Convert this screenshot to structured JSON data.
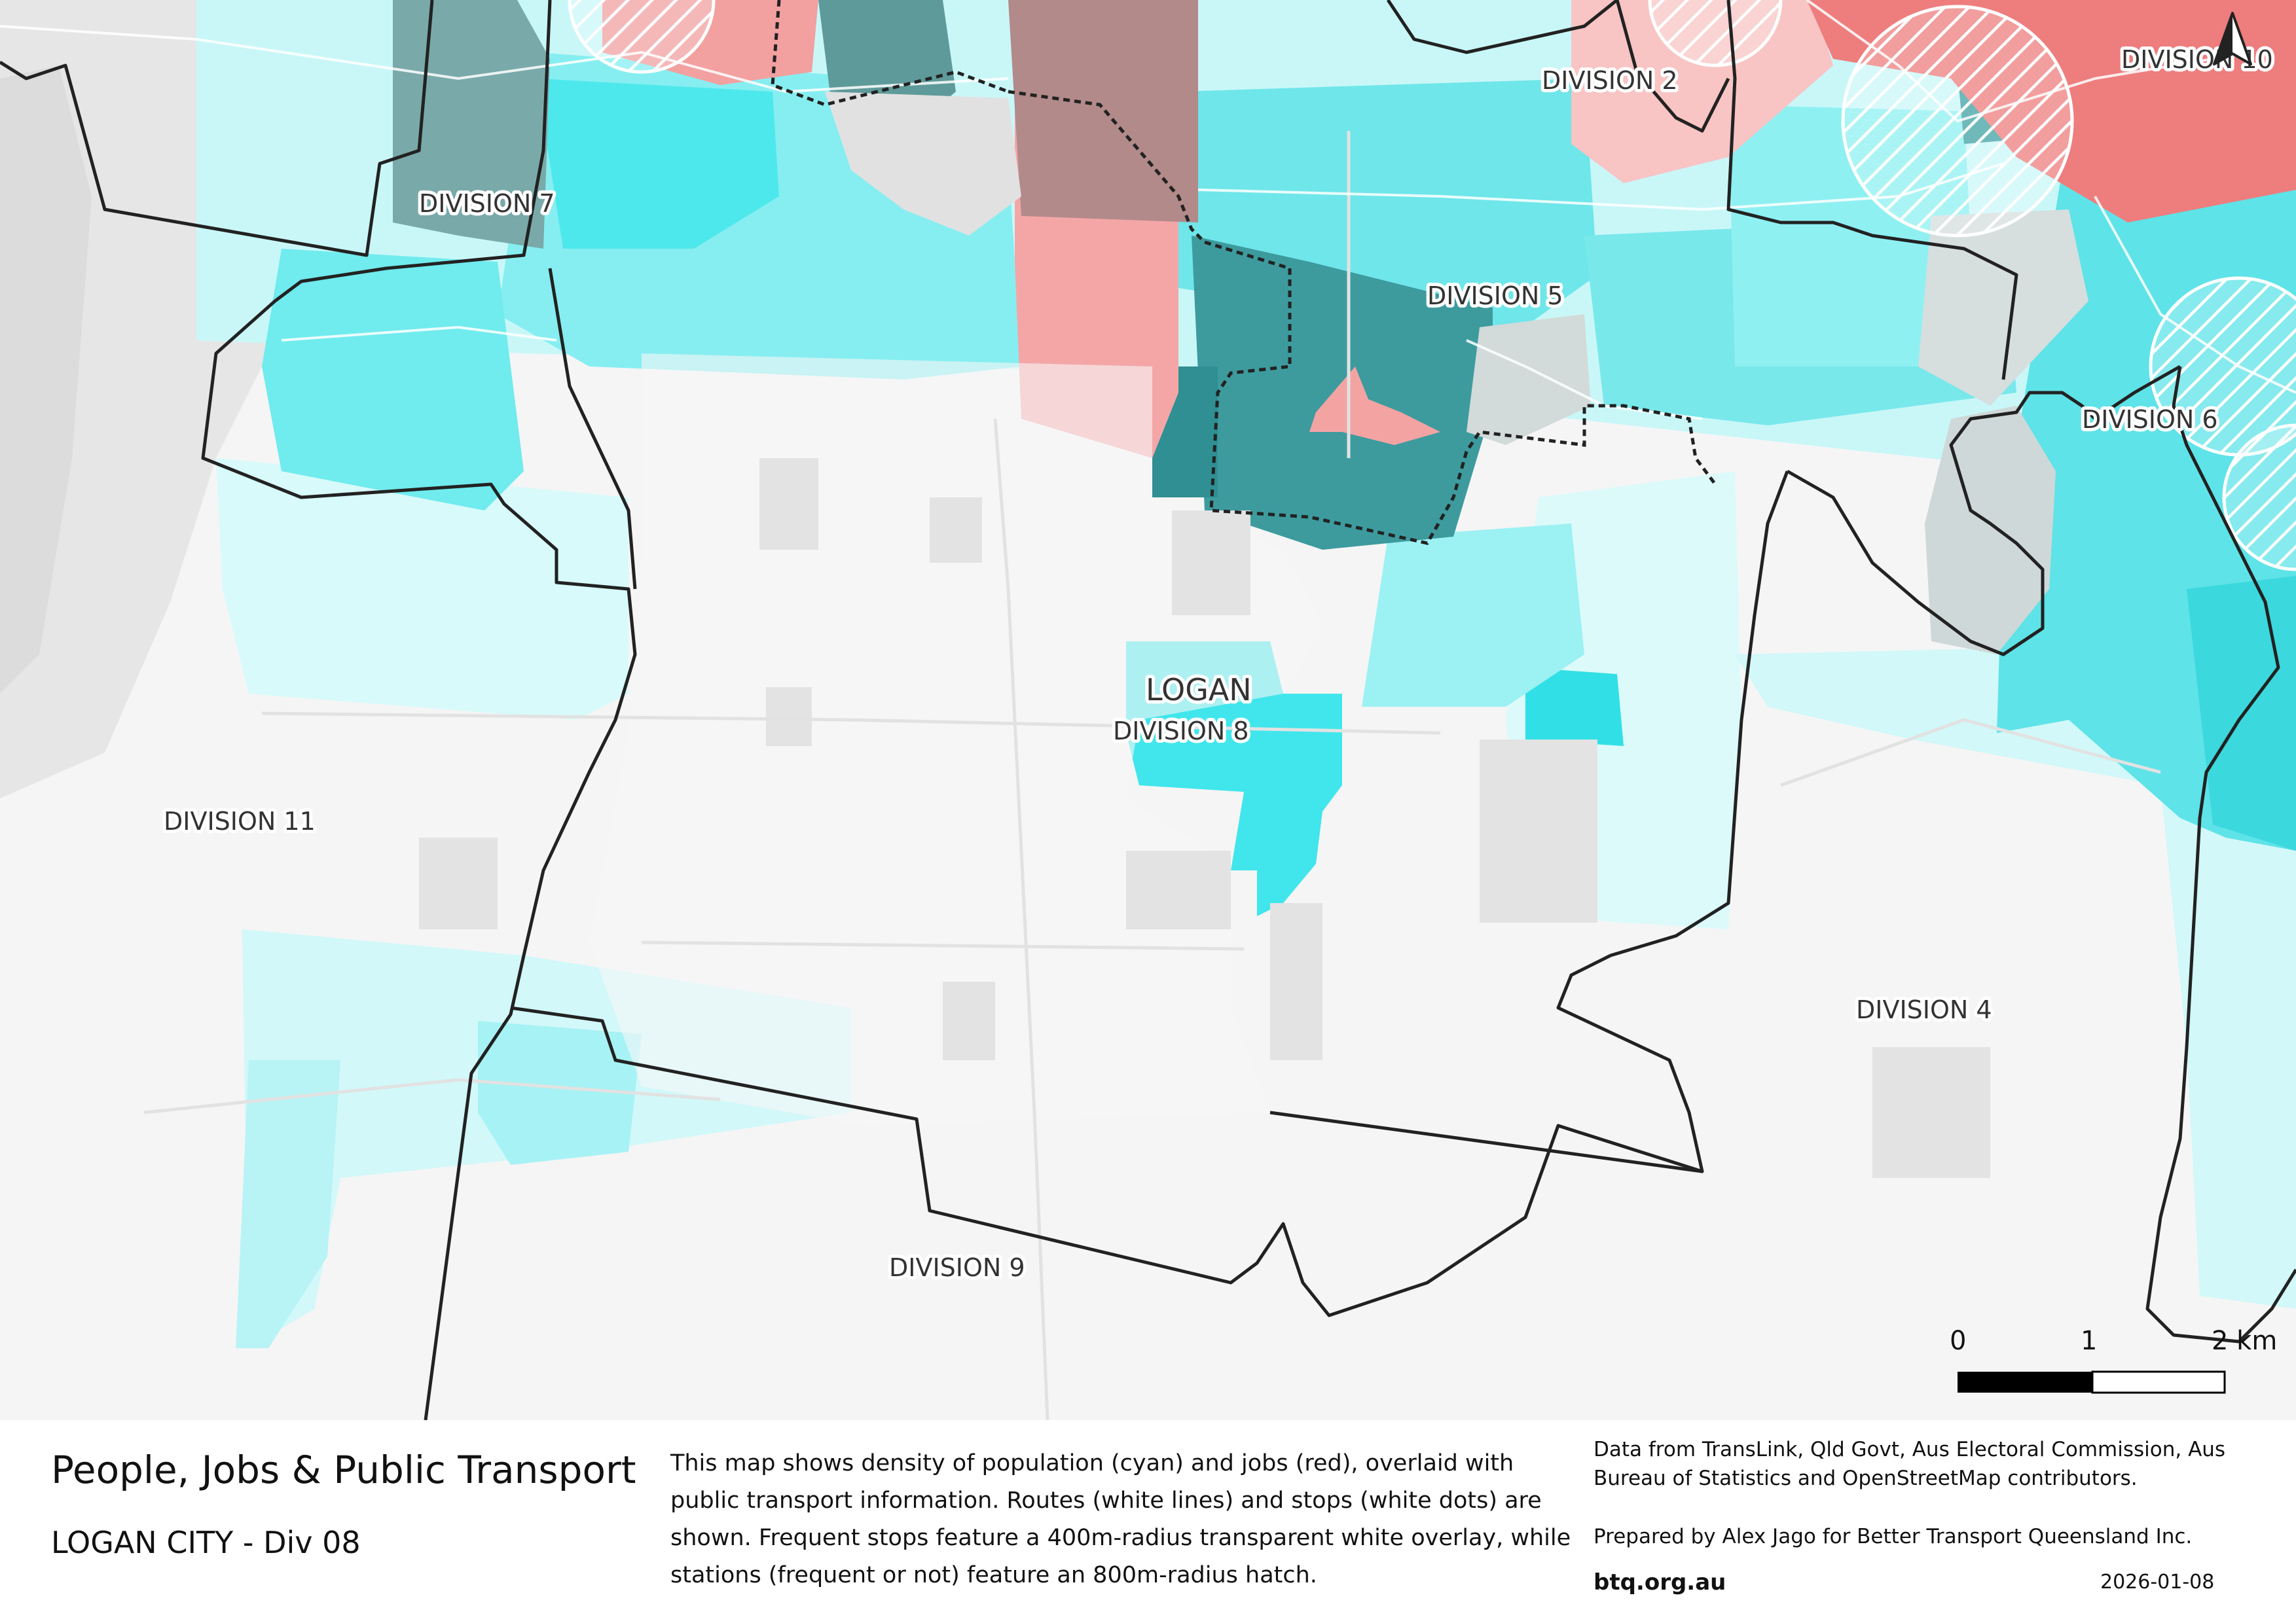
{
  "map": {
    "city_label": "LOGAN",
    "division_labels": {
      "div2": "DIVISION 2",
      "div4": "DIVISION 4",
      "div5": "DIVISION 5",
      "div6": "DIVISION 6",
      "div7": "DIVISION 7",
      "div8": "DIVISION 8",
      "div9": "DIVISION 9",
      "div10": "DIVISION 10",
      "div11": "DIVISION 11"
    },
    "legend_colors": {
      "population": "#2ee6ea",
      "jobs": "#f08080",
      "boundary": "#222222"
    },
    "north_arrow_icon": "north-arrow-icon"
  },
  "scale_bar": {
    "tick0": "0",
    "tick1": "1",
    "tick2": "2 km"
  },
  "footer": {
    "title": "People, Jobs & Public Transport",
    "subtitle": "LOGAN CITY - Div 08",
    "description": "This map shows density of population (cyan) and jobs (red), overlaid with public transport information. Routes (white lines) and stops (white dots) are shown. Frequent stops feature a 400m-radius transparent white overlay, while stations (frequent or not) feature an 800m-radius hatch.",
    "sources": "Data from TransLink,  Qld Govt,  Aus Electoral Commission, Aus Bureau of Statistics and OpenStreetMap contributors.",
    "prepared_by": "Prepared by Alex Jago for Better Transport Queensland Inc.",
    "url": "btq.org.au",
    "date": "2026-01-08"
  }
}
